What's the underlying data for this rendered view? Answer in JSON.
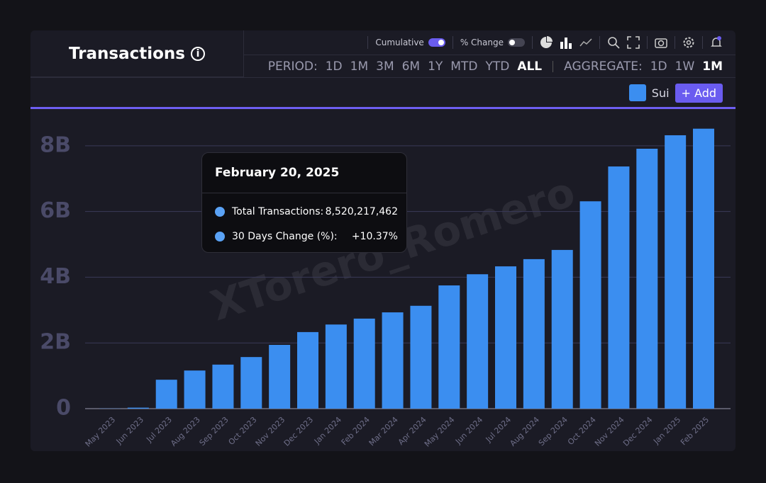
{
  "header": {
    "title": "Transactions",
    "toggles": [
      "Cumulative",
      "% Change"
    ],
    "period_label": "PERIOD:",
    "periods": [
      "1D",
      "1M",
      "3M",
      "6M",
      "1Y",
      "MTD",
      "YTD",
      "ALL"
    ],
    "aggregate_label": "AGGREGATE:",
    "aggregates": [
      "1D",
      "1W",
      "1M"
    ],
    "add_button": "+ Add"
  },
  "tooltip": {
    "date": "February 20, 2025",
    "rows": [
      {
        "label": "Total Transactions:",
        "value": "8,520,217,462"
      },
      {
        "label": "30 Days Change (%):",
        "value": "+10.37%"
      }
    ]
  },
  "watermark": "XTorero_Romero",
  "chart_data": {
    "type": "bar",
    "categories": [
      "May 2023",
      "Jun 2023",
      "Jul 2023",
      "Aug 2023",
      "Sep 2023",
      "Oct 2023",
      "Nov 2023",
      "Dec 2023",
      "Jan 2024",
      "Feb 2024",
      "Mar 2024",
      "Apr 2024",
      "May 2024",
      "Jun 2024",
      "Jul 2024",
      "Aug 2024",
      "Sep 2024",
      "Oct 2024",
      "Nov 2024",
      "Dec 2024",
      "Jan 2025",
      "Feb 2025"
    ],
    "series": [
      {
        "name": "Sui",
        "color": "#3b8ef0",
        "values": [
          5000000,
          30000000,
          880000000,
          1160000000,
          1340000000,
          1570000000,
          1940000000,
          2330000000,
          2560000000,
          2740000000,
          2930000000,
          3130000000,
          3750000000,
          4090000000,
          4330000000,
          4550000000,
          4830000000,
          6310000000,
          7370000000,
          7910000000,
          8320000000,
          8520217462
        ]
      }
    ],
    "ylim": [
      0,
      8880000000
    ],
    "yticks": [
      0,
      {
        "value": 2000000000,
        "label": "2B"
      },
      {
        "value": 4000000000,
        "label": "4B"
      },
      {
        "value": 6000000000,
        "label": "6B"
      },
      {
        "value": 8000000000,
        "label": "8B"
      }
    ],
    "grid": true
  }
}
